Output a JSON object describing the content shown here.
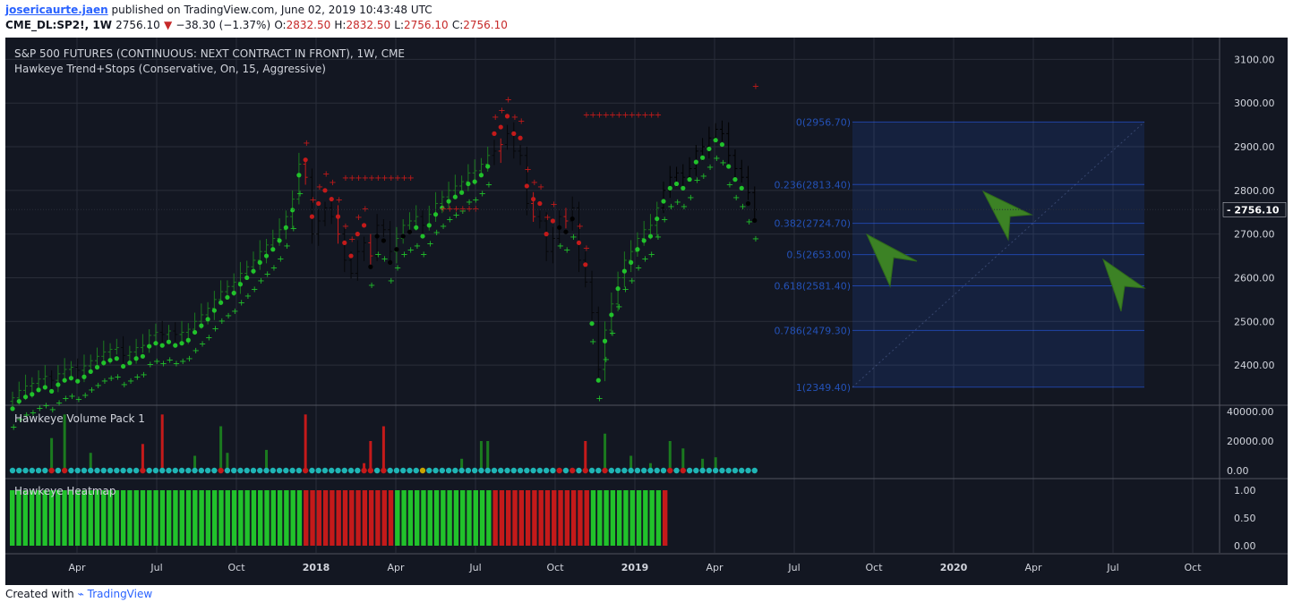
{
  "header": {
    "username": "josericaurte.jaen",
    "published_text": "published on TradingView.com, June 02, 2019 10:43:48 UTC",
    "symbol": "CME_DL:SP2!, 1W",
    "last": "2756.10",
    "change_arrow": "▼",
    "change": "−38.30 (−1.37%)",
    "o_label": "O:",
    "o": "2832.50",
    "h_label": "H:",
    "h": "2832.50",
    "l_label": "L:",
    "l": "2756.10",
    "c_label": "C:",
    "c": "2756.10"
  },
  "legend": {
    "title": "S&P 500 FUTURES (CONTINUOUS: NEXT CONTRACT IN FRONT), 1W, CME",
    "indicator": "Hawkeye Trend+Stops (Conservative, On, 15, Aggressive)",
    "volume_pane": "Hawkeye Volume Pack 1",
    "heatmap_pane": "Hawkeye Heatmap"
  },
  "footer": {
    "created_with": "Created with",
    "brand": "TradingView"
  },
  "colors": {
    "background": "#131722",
    "grid": "#2a2e39",
    "green": "#21c22b",
    "darkgreen": "#1b7a1f",
    "red": "#c41a1a",
    "black": "#000000",
    "teal": "#1fb5b5",
    "fib": "#2962ff",
    "arrow": "#3c8225"
  },
  "chart_data": [
    {
      "type": "candlestick",
      "title": "S&P 500 FUTURES (CONTINUOUS: NEXT CONTRACT IN FRONT), 1W, CME",
      "ylim": [
        2310,
        3150
      ],
      "y_ticks": [
        "3100.00",
        "3000.00",
        "2900.00",
        "2800.00",
        "2700.00",
        "2600.00",
        "2500.00",
        "2400.00"
      ],
      "last_price_label": "2756.10",
      "x_ticks": [
        "Apr",
        "Jul",
        "Oct",
        "2018",
        "Apr",
        "Jul",
        "Oct",
        "2019",
        "Apr",
        "Jul",
        "Oct",
        "2020",
        "Apr",
        "Jul",
        "Oct"
      ],
      "weekly_close_approx": [
        2325,
        2342,
        2352,
        2358,
        2368,
        2374,
        2365,
        2380,
        2390,
        2395,
        2388,
        2398,
        2410,
        2420,
        2430,
        2436,
        2440,
        2422,
        2430,
        2440,
        2445,
        2468,
        2475,
        2470,
        2478,
        2470,
        2475,
        2482,
        2500,
        2515,
        2530,
        2550,
        2568,
        2580,
        2590,
        2610,
        2625,
        2640,
        2660,
        2675,
        2690,
        2710,
        2740,
        2780,
        2860,
        2830,
        2700,
        2730,
        2760,
        2740,
        2700,
        2640,
        2610,
        2660,
        2680,
        2650,
        2720,
        2710,
        2660,
        2690,
        2720,
        2730,
        2740,
        2720,
        2745,
        2770,
        2785,
        2800,
        2810,
        2820,
        2840,
        2845,
        2860,
        2880,
        2890,
        2905,
        2930,
        2890,
        2880,
        2770,
        2740,
        2730,
        2660,
        2690,
        2740,
        2730,
        2760,
        2640,
        2590,
        2520,
        2390,
        2480,
        2540,
        2600,
        2640,
        2660,
        2690,
        2710,
        2720,
        2760,
        2800,
        2830,
        2840,
        2830,
        2850,
        2890,
        2900,
        2920,
        2940,
        2930,
        2880,
        2850,
        2830,
        2795,
        2756.1
      ],
      "stops_red_levels": [
        2830,
        2760,
        2975,
        2930,
        2890,
        2860,
        2800,
        3040
      ],
      "fibonacci": [
        {
          "label": "0(2956.70)",
          "value": 2956.7
        },
        {
          "label": "0.236(2813.40)",
          "value": 2813.4
        },
        {
          "label": "0.382(2724.70)",
          "value": 2724.7
        },
        {
          "label": "0.5(2653.00)",
          "value": 2653.0
        },
        {
          "label": "0.618(2581.40)",
          "value": 2581.4
        },
        {
          "label": "0.786(2479.30)",
          "value": 2479.3
        },
        {
          "label": "1(2349.40)",
          "value": 2349.4
        }
      ]
    },
    {
      "type": "bar",
      "title": "Hawkeye Volume Pack 1",
      "ylim": [
        0,
        40000
      ],
      "y_ticks": [
        "40000.00",
        "20000.00",
        "0.00"
      ]
    },
    {
      "type": "heatmap",
      "title": "Hawkeye Heatmap",
      "ylim": [
        0,
        1
      ],
      "y_ticks": [
        "1.00",
        "0.50",
        "0.00"
      ],
      "segments": [
        {
          "color": "green",
          "bars": 45
        },
        {
          "color": "red",
          "bars": 14
        },
        {
          "color": "green",
          "bars": 15
        },
        {
          "color": "red",
          "bars": 15
        },
        {
          "color": "green",
          "bars": 11
        },
        {
          "color": "red",
          "bars": 1
        }
      ]
    }
  ]
}
